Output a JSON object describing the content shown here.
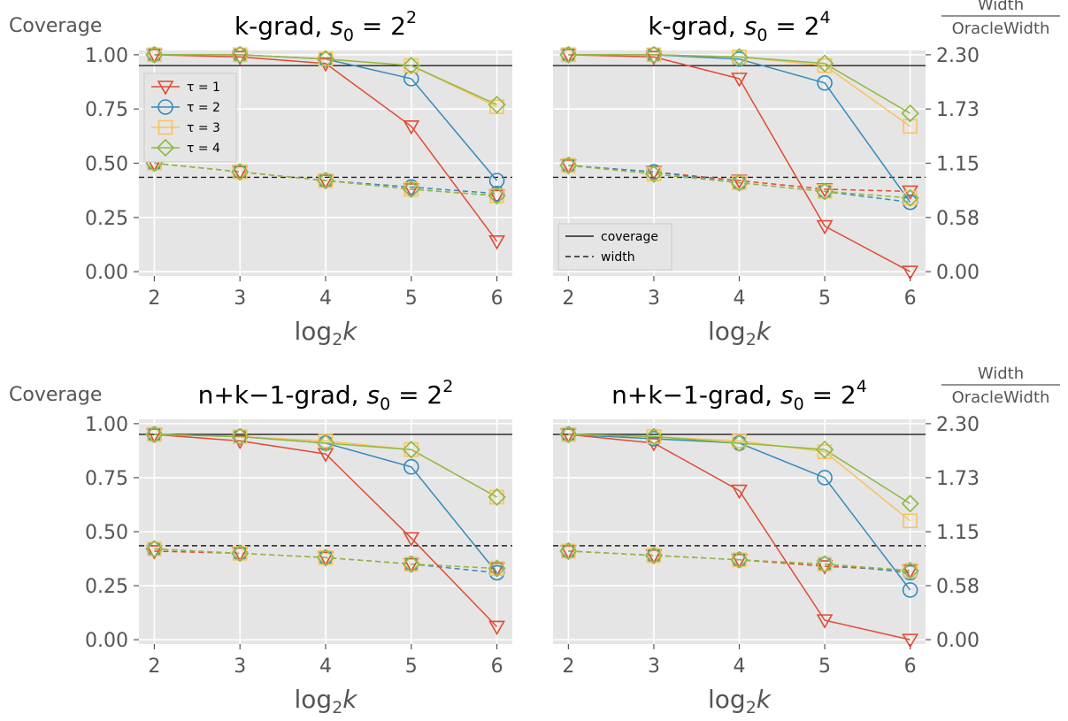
{
  "chart_data": [
    {
      "type": "line",
      "title_text": "k-grad, ",
      "title_math": {
        "var": "s",
        "sub": "0",
        "rel": " = 2",
        "sup": "2"
      },
      "xlabel": {
        "base": "log",
        "sub": "2",
        "var": "k"
      },
      "left_axis_label": "Coverage",
      "x": [
        2,
        3,
        4,
        5,
        6
      ],
      "x_ticks": [
        "2",
        "3",
        "4",
        "5",
        "6"
      ],
      "y_ticks": [
        "0.00",
        "0.25",
        "0.50",
        "0.75",
        "1.00"
      ],
      "ylim": [
        -0.02,
        1.02
      ],
      "grid": true,
      "coverage_reference": 0.95,
      "width_reference": 0.435,
      "legend": {
        "placement": "upper-left",
        "entries": [
          "τ = 1",
          "τ = 2",
          "τ = 3",
          "τ = 4"
        ]
      },
      "series": [
        {
          "name": "τ = 1",
          "color": "#E24A33",
          "marker": "triangle-down",
          "coverage": [
            1.0,
            0.99,
            0.96,
            0.67,
            0.14
          ],
          "width": [
            0.5,
            0.46,
            0.42,
            0.38,
            0.35
          ]
        },
        {
          "name": "τ = 2",
          "color": "#348ABD",
          "marker": "circle",
          "coverage": [
            1.0,
            1.0,
            0.98,
            0.89,
            0.42
          ],
          "width": [
            0.5,
            0.46,
            0.42,
            0.39,
            0.36
          ]
        },
        {
          "name": "τ = 3",
          "color": "#FBC15E",
          "marker": "square",
          "coverage": [
            1.0,
            1.0,
            0.98,
            0.95,
            0.76
          ],
          "width": [
            0.5,
            0.46,
            0.42,
            0.38,
            0.35
          ]
        },
        {
          "name": "τ = 4",
          "color": "#8EBA42",
          "marker": "diamond",
          "coverage": [
            1.0,
            1.0,
            0.98,
            0.95,
            0.77
          ],
          "width": [
            0.5,
            0.46,
            0.42,
            0.38,
            0.35
          ]
        }
      ]
    },
    {
      "type": "line",
      "title_text": "k-grad, ",
      "title_math": {
        "var": "s",
        "sub": "0",
        "rel": " = 2",
        "sup": "4"
      },
      "xlabel": {
        "base": "log",
        "sub": "2",
        "var": "k"
      },
      "right_axis_label": {
        "numerator": "Width",
        "denominator": "OracleWidth"
      },
      "x": [
        2,
        3,
        4,
        5,
        6
      ],
      "x_ticks": [
        "2",
        "3",
        "4",
        "5",
        "6"
      ],
      "y_ticks_right": [
        "0.00",
        "0.58",
        "1.15",
        "1.73",
        "2.30"
      ],
      "ylim": [
        -0.02,
        1.02
      ],
      "grid": true,
      "coverage_reference": 0.95,
      "width_reference": 0.435,
      "legend": {
        "placement": "lower-left",
        "entries": [
          "coverage",
          "width"
        ]
      },
      "series": [
        {
          "name": "τ = 1",
          "color": "#E24A33",
          "marker": "triangle-down",
          "coverage": [
            1.0,
            0.99,
            0.89,
            0.21,
            0.0
          ],
          "width": [
            0.49,
            0.46,
            0.42,
            0.38,
            0.37
          ]
        },
        {
          "name": "τ = 2",
          "color": "#348ABD",
          "marker": "circle",
          "coverage": [
            1.0,
            1.0,
            0.98,
            0.87,
            0.32
          ],
          "width": [
            0.49,
            0.46,
            0.41,
            0.37,
            0.32
          ]
        },
        {
          "name": "τ = 3",
          "color": "#FBC15E",
          "marker": "square",
          "coverage": [
            1.0,
            1.0,
            0.99,
            0.95,
            0.67
          ],
          "width": [
            0.49,
            0.45,
            0.41,
            0.37,
            0.34
          ]
        },
        {
          "name": "τ = 4",
          "color": "#8EBA42",
          "marker": "diamond",
          "coverage": [
            1.0,
            1.0,
            0.99,
            0.96,
            0.73
          ],
          "width": [
            0.49,
            0.45,
            0.41,
            0.37,
            0.34
          ]
        }
      ]
    },
    {
      "type": "line",
      "title_text": "n+k−1-grad, ",
      "title_math": {
        "var": "s",
        "sub": "0",
        "rel": " = 2",
        "sup": "2"
      },
      "xlabel": {
        "base": "log",
        "sub": "2",
        "var": "k"
      },
      "left_axis_label": "Coverage",
      "x": [
        2,
        3,
        4,
        5,
        6
      ],
      "x_ticks": [
        "2",
        "3",
        "4",
        "5",
        "6"
      ],
      "y_ticks": [
        "0.00",
        "0.25",
        "0.50",
        "0.75",
        "1.00"
      ],
      "ylim": [
        -0.02,
        1.02
      ],
      "grid": true,
      "coverage_reference": 0.95,
      "width_reference": 0.435,
      "series": [
        {
          "name": "τ = 1",
          "color": "#E24A33",
          "marker": "triangle-down",
          "coverage": [
            0.95,
            0.92,
            0.86,
            0.47,
            0.06
          ],
          "width": [
            0.41,
            0.4,
            0.38,
            0.35,
            0.33
          ]
        },
        {
          "name": "τ = 2",
          "color": "#348ABD",
          "marker": "circle",
          "coverage": [
            0.95,
            0.94,
            0.91,
            0.8,
            0.31
          ],
          "width": [
            0.42,
            0.4,
            0.38,
            0.35,
            0.31
          ]
        },
        {
          "name": "τ = 3",
          "color": "#FBC15E",
          "marker": "square",
          "coverage": [
            0.95,
            0.94,
            0.92,
            0.88,
            0.66
          ],
          "width": [
            0.42,
            0.4,
            0.38,
            0.35,
            0.33
          ]
        },
        {
          "name": "τ = 4",
          "color": "#8EBA42",
          "marker": "diamond",
          "coverage": [
            0.95,
            0.94,
            0.91,
            0.88,
            0.66
          ],
          "width": [
            0.42,
            0.4,
            0.38,
            0.35,
            0.33
          ]
        }
      ]
    },
    {
      "type": "line",
      "title_text": "n+k−1-grad, ",
      "title_math": {
        "var": "s",
        "sub": "0",
        "rel": " = 2",
        "sup": "4"
      },
      "xlabel": {
        "base": "log",
        "sub": "2",
        "var": "k"
      },
      "right_axis_label": {
        "numerator": "Width",
        "denominator": "OracleWidth"
      },
      "x": [
        2,
        3,
        4,
        5,
        6
      ],
      "x_ticks": [
        "2",
        "3",
        "4",
        "5",
        "6"
      ],
      "y_ticks_right": [
        "0.00",
        "0.58",
        "1.15",
        "1.73",
        "2.30"
      ],
      "ylim": [
        -0.02,
        1.02
      ],
      "grid": true,
      "coverage_reference": 0.95,
      "width_reference": 0.435,
      "series": [
        {
          "name": "τ = 1",
          "color": "#E24A33",
          "marker": "triangle-down",
          "coverage": [
            0.95,
            0.91,
            0.69,
            0.09,
            0.0
          ],
          "width": [
            0.41,
            0.39,
            0.37,
            0.34,
            0.32
          ]
        },
        {
          "name": "τ = 2",
          "color": "#348ABD",
          "marker": "circle",
          "coverage": [
            0.95,
            0.93,
            0.91,
            0.75,
            0.23
          ],
          "width": [
            0.41,
            0.39,
            0.37,
            0.35,
            0.31
          ]
        },
        {
          "name": "τ = 3",
          "color": "#FBC15E",
          "marker": "square",
          "coverage": [
            0.95,
            0.94,
            0.92,
            0.87,
            0.55
          ],
          "width": [
            0.41,
            0.39,
            0.37,
            0.35,
            0.32
          ]
        },
        {
          "name": "τ = 4",
          "color": "#8EBA42",
          "marker": "diamond",
          "coverage": [
            0.95,
            0.94,
            0.91,
            0.88,
            0.63
          ],
          "width": [
            0.41,
            0.39,
            0.37,
            0.35,
            0.32
          ]
        }
      ]
    }
  ]
}
